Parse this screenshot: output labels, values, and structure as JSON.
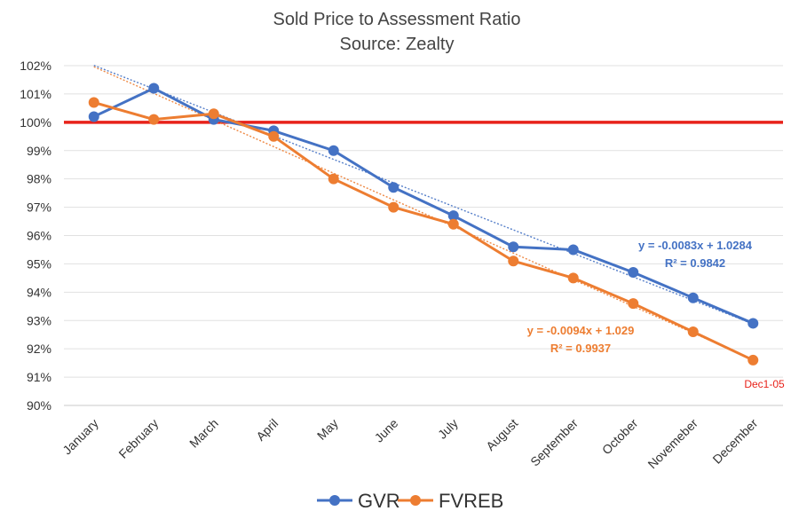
{
  "chart_data": {
    "type": "line",
    "title": "Sold Price to Assessment Ratio",
    "subtitle": "Source: Zealty",
    "categories": [
      "January",
      "February",
      "March",
      "April",
      "May",
      "June",
      "July",
      "August",
      "September",
      "October",
      "Novemeber",
      "December"
    ],
    "series": [
      {
        "name": "GVR",
        "color": "#4472C4",
        "values": [
          1.002,
          1.012,
          1.001,
          0.997,
          0.99,
          0.977,
          0.967,
          0.956,
          0.955,
          0.947,
          0.938,
          0.929
        ],
        "trendline": {
          "slope": -0.0083,
          "intercept": 1.0284,
          "equation": "y = -0.0083x + 1.0284",
          "r2": "R² = 0.9842"
        }
      },
      {
        "name": "FVREB",
        "color": "#ED7D31",
        "values": [
          1.007,
          1.001,
          1.003,
          0.995,
          0.98,
          0.97,
          0.964,
          0.951,
          0.945,
          0.936,
          0.926,
          0.916
        ],
        "trendline": {
          "slope": -0.0094,
          "intercept": 1.029,
          "equation": "y = -0.0094x + 1.029",
          "r2": "R² = 0.9937"
        }
      }
    ],
    "reference_line": {
      "value": 1.0,
      "color": "#E8221A"
    },
    "yticks": [
      "90%",
      "91%",
      "92%",
      "93%",
      "94%",
      "95%",
      "96%",
      "97%",
      "98%",
      "99%",
      "100%",
      "101%",
      "102%"
    ],
    "ylim": [
      0.9,
      1.02
    ],
    "grid": true,
    "legend": "bottom",
    "annotation": {
      "text": "Dec1-05",
      "color": "#E8221A"
    }
  }
}
